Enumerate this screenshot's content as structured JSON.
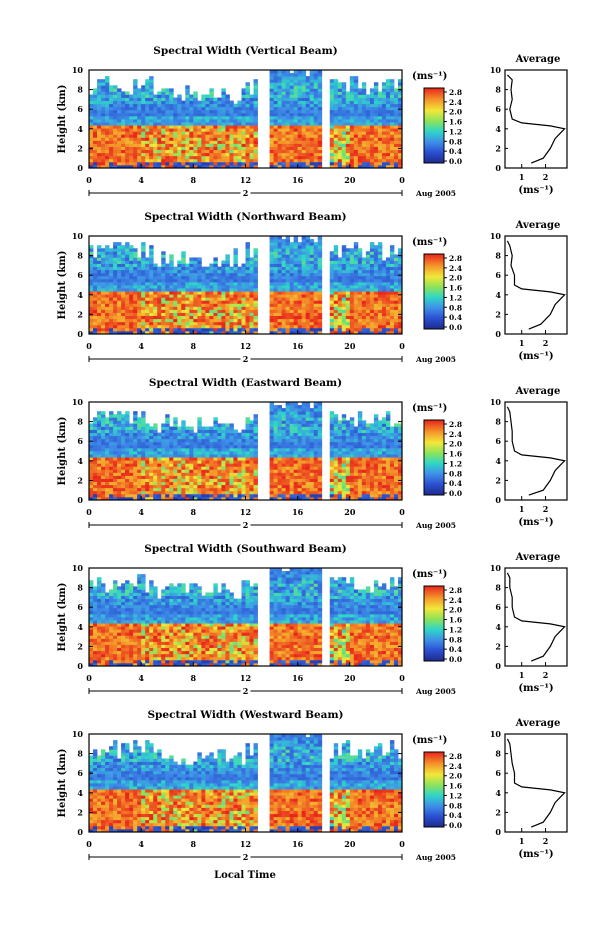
{
  "colors": {
    "white_missing": "#ffffff",
    "scale_low": "#1e2a8c",
    "scale_mid": "#2fd6c8",
    "scale_high": "#e8231c"
  },
  "common": {
    "ylabel": "Height (km)",
    "yticks": [
      "0",
      "2",
      "4",
      "6",
      "8",
      "10"
    ],
    "xticks": [
      "0",
      "4",
      "8",
      "12",
      "16",
      "20",
      "0"
    ],
    "day_marker": "2",
    "date_label": "Aug 2005",
    "unit_label": "(ms⁻¹)",
    "colorbar_ticks": [
      "0.0",
      "0.4",
      "0.8",
      "1.2",
      "1.6",
      "2.0",
      "2.4",
      "2.8"
    ],
    "avg_title": "Average",
    "avg_xticks": [
      "1",
      "2"
    ],
    "avg_xlabel": "(ms⁻¹)",
    "xlabel_bottom": "Local Time"
  },
  "chart_data": [
    {
      "type": "heatmap",
      "title": "Spectral Width (Vertical Beam)",
      "x_range_hours": [
        0,
        24
      ],
      "y_range_km": [
        0,
        10
      ],
      "color_range": [
        0.0,
        2.8
      ],
      "average_profile": {
        "height_km": [
          0.5,
          1,
          2,
          3,
          3.5,
          4,
          4.3,
          4.6,
          5,
          6,
          7,
          8,
          9,
          9.5
        ],
        "width_ms": [
          1.4,
          1.9,
          2.2,
          2.4,
          2.6,
          2.8,
          2.2,
          1.0,
          0.6,
          0.5,
          0.6,
          0.55,
          0.6,
          0.4
        ]
      }
    },
    {
      "type": "heatmap",
      "title": "Spectral Width (Northward Beam)",
      "x_range_hours": [
        0,
        24
      ],
      "y_range_km": [
        0,
        10
      ],
      "color_range": [
        0.0,
        2.8
      ],
      "average_profile": {
        "height_km": [
          0.5,
          1,
          2,
          3,
          3.5,
          4,
          4.3,
          4.6,
          5,
          6,
          7,
          8,
          9,
          9.5
        ],
        "width_ms": [
          1.3,
          1.8,
          2.2,
          2.4,
          2.6,
          2.8,
          2.2,
          1.0,
          0.7,
          0.7,
          0.55,
          0.6,
          0.5,
          0.4
        ]
      }
    },
    {
      "type": "heatmap",
      "title": "Spectral Width (Eastward Beam)",
      "x_range_hours": [
        0,
        24
      ],
      "y_range_km": [
        0,
        10
      ],
      "color_range": [
        0.0,
        2.8
      ],
      "average_profile": {
        "height_km": [
          0.5,
          1,
          2,
          3,
          3.5,
          4,
          4.3,
          4.6,
          5,
          6,
          7,
          8,
          9,
          9.5
        ],
        "width_ms": [
          1.3,
          1.9,
          2.2,
          2.4,
          2.6,
          2.8,
          2.2,
          1.0,
          0.7,
          0.6,
          0.6,
          0.55,
          0.5,
          0.4
        ]
      }
    },
    {
      "type": "heatmap",
      "title": "Spectral Width (Southward Beam)",
      "x_range_hours": [
        0,
        24
      ],
      "y_range_km": [
        0,
        10
      ],
      "color_range": [
        0.0,
        2.8
      ],
      "average_profile": {
        "height_km": [
          0.5,
          1,
          2,
          3,
          3.5,
          4,
          4.3,
          4.6,
          5,
          6,
          7,
          8,
          9,
          9.5
        ],
        "width_ms": [
          1.4,
          1.9,
          2.2,
          2.4,
          2.6,
          2.8,
          2.2,
          1.0,
          0.7,
          0.6,
          0.6,
          0.5,
          0.5,
          0.4
        ]
      }
    },
    {
      "type": "heatmap",
      "title": "Spectral Width (Westward Beam)",
      "x_range_hours": [
        0,
        24
      ],
      "y_range_km": [
        0,
        10
      ],
      "color_range": [
        0.0,
        2.8
      ],
      "average_profile": {
        "height_km": [
          0.5,
          1,
          2,
          3,
          3.5,
          4,
          4.3,
          4.6,
          5,
          6,
          7,
          8,
          9,
          9.5
        ],
        "width_ms": [
          1.4,
          1.9,
          2.2,
          2.4,
          2.6,
          2.8,
          2.2,
          1.0,
          0.7,
          0.7,
          0.6,
          0.55,
          0.5,
          0.4
        ]
      }
    }
  ]
}
